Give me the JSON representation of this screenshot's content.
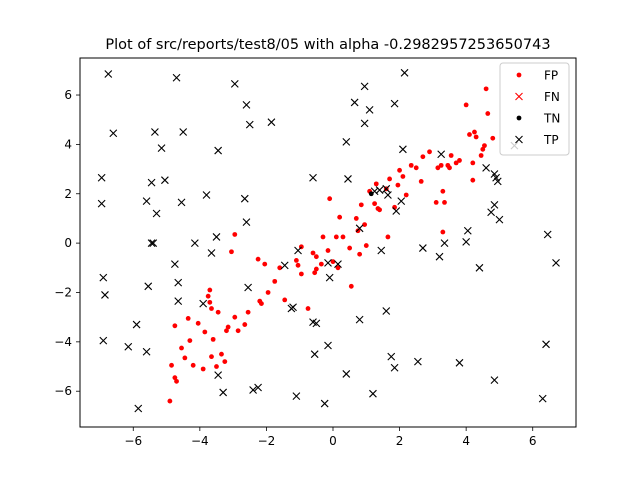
{
  "chart_data": {
    "type": "scatter",
    "title": "Plot of src/reports/test8/05 with alpha -0.2982957253650743",
    "xlabel": "",
    "ylabel": "",
    "xlim": [
      -7.6,
      7.3
    ],
    "ylim": [
      -7.45,
      7.5
    ],
    "xticks": [
      -6,
      -4,
      -2,
      0,
      2,
      4,
      6
    ],
    "yticks": [
      -6,
      -4,
      -2,
      0,
      2,
      4,
      6
    ],
    "grid": false,
    "legend_position": "top-right",
    "series": [
      {
        "name": "FP",
        "marker": "dot",
        "color": "#ff0000",
        "points": [
          [
            -4.9,
            -6.4
          ],
          [
            -4.85,
            -4.95
          ],
          [
            -4.75,
            -5.45
          ],
          [
            -4.7,
            -5.6
          ],
          [
            -4.75,
            -3.35
          ],
          [
            -4.55,
            -4.25
          ],
          [
            -4.45,
            -4.65
          ],
          [
            -4.35,
            -3.05
          ],
          [
            -4.3,
            -3.95
          ],
          [
            -4.2,
            -4.95
          ],
          [
            -4.05,
            -3.25
          ],
          [
            -3.9,
            -5.1
          ],
          [
            -3.85,
            -3.6
          ],
          [
            -3.75,
            -2.15
          ],
          [
            -3.7,
            -2.4
          ],
          [
            -3.7,
            -1.9
          ],
          [
            -3.65,
            -2.65
          ],
          [
            -3.65,
            -4.6
          ],
          [
            -3.6,
            -3.9
          ],
          [
            -3.5,
            -5.0
          ],
          [
            -3.45,
            -2.8
          ],
          [
            -3.35,
            -4.5
          ],
          [
            -3.25,
            -4.8
          ],
          [
            -3.2,
            -3.55
          ],
          [
            -3.15,
            -3.4
          ],
          [
            -3.05,
            -0.35
          ],
          [
            -2.95,
            0.35
          ],
          [
            -2.95,
            -3.0
          ],
          [
            -2.85,
            -3.55
          ],
          [
            -2.65,
            -3.3
          ],
          [
            -2.55,
            -2.8
          ],
          [
            -2.25,
            -0.65
          ],
          [
            -2.2,
            -2.35
          ],
          [
            -2.15,
            -2.45
          ],
          [
            -2.05,
            -0.85
          ],
          [
            -1.95,
            -2.0
          ],
          [
            -1.75,
            -1.55
          ],
          [
            -1.6,
            -1.0
          ],
          [
            -1.45,
            -2.3
          ],
          [
            -1.1,
            -0.7
          ],
          [
            -1.05,
            -0.9
          ],
          [
            -0.95,
            -1.25
          ],
          [
            -0.95,
            -0.15
          ],
          [
            -0.75,
            -2.65
          ],
          [
            -0.6,
            -0.4
          ],
          [
            -0.55,
            -1.2
          ],
          [
            -0.5,
            -1.05
          ],
          [
            -0.5,
            -0.55
          ],
          [
            -0.35,
            -0.85
          ],
          [
            -0.3,
            0.25
          ],
          [
            -0.15,
            -0.3
          ],
          [
            -0.1,
            1.8
          ],
          [
            0.0,
            -0.75
          ],
          [
            0.1,
            0.25
          ],
          [
            0.15,
            -1.0
          ],
          [
            0.2,
            1.05
          ],
          [
            0.3,
            0.25
          ],
          [
            0.5,
            -0.2
          ],
          [
            0.55,
            -1.75
          ],
          [
            0.7,
            1.0
          ],
          [
            0.75,
            0.5
          ],
          [
            0.8,
            -0.45
          ],
          [
            0.85,
            1.55
          ],
          [
            0.95,
            0.75
          ],
          [
            1.0,
            -0.1
          ],
          [
            1.1,
            2.1
          ],
          [
            1.25,
            1.6
          ],
          [
            1.3,
            2.4
          ],
          [
            1.35,
            1.4
          ],
          [
            1.4,
            1.35
          ],
          [
            1.6,
            2.2
          ],
          [
            1.65,
            0.25
          ],
          [
            1.7,
            2.6
          ],
          [
            1.85,
            1.45
          ],
          [
            1.95,
            2.35
          ],
          [
            2.0,
            2.95
          ],
          [
            2.1,
            2.7
          ],
          [
            2.2,
            1.95
          ],
          [
            2.35,
            3.15
          ],
          [
            2.5,
            3.05
          ],
          [
            2.65,
            2.5
          ],
          [
            2.7,
            3.5
          ],
          [
            2.9,
            3.7
          ],
          [
            3.1,
            1.65
          ],
          [
            3.15,
            3.05
          ],
          [
            3.25,
            3.15
          ],
          [
            3.3,
            2.1
          ],
          [
            3.3,
            0.45
          ],
          [
            3.35,
            1.65
          ],
          [
            3.45,
            3.15
          ],
          [
            3.5,
            3.05
          ],
          [
            3.55,
            3.55
          ],
          [
            3.7,
            3.25
          ],
          [
            3.8,
            3.35
          ],
          [
            4.0,
            5.6
          ],
          [
            4.1,
            4.4
          ],
          [
            4.2,
            3.25
          ],
          [
            4.2,
            2.55
          ],
          [
            4.25,
            4.5
          ],
          [
            4.3,
            4.3
          ],
          [
            4.45,
            3.55
          ],
          [
            4.5,
            3.8
          ],
          [
            4.55,
            3.95
          ],
          [
            4.6,
            6.25
          ],
          [
            4.65,
            5.25
          ],
          [
            4.8,
            4.25
          ]
        ]
      },
      {
        "name": "FN",
        "marker": "x",
        "color": "#ff0000",
        "points": []
      },
      {
        "name": "TN",
        "marker": "dot",
        "color": "#000000",
        "points": [
          [
            1.15,
            2.0
          ]
        ]
      },
      {
        "name": "TP",
        "marker": "x",
        "color": "#000000",
        "points": [
          [
            -6.95,
            2.65
          ],
          [
            -6.95,
            1.6
          ],
          [
            -6.9,
            -1.4
          ],
          [
            -6.85,
            -2.1
          ],
          [
            -6.9,
            -3.95
          ],
          [
            -6.75,
            6.85
          ],
          [
            -6.6,
            4.45
          ],
          [
            -6.15,
            -4.2
          ],
          [
            -5.9,
            -3.3
          ],
          [
            -5.85,
            -6.7
          ],
          [
            -5.6,
            -4.4
          ],
          [
            -5.6,
            1.7
          ],
          [
            -5.55,
            -1.75
          ],
          [
            -5.45,
            2.45
          ],
          [
            -5.45,
            0.0
          ],
          [
            -5.4,
            0.0
          ],
          [
            -5.35,
            4.5
          ],
          [
            -5.3,
            1.2
          ],
          [
            -5.15,
            3.85
          ],
          [
            -5.05,
            2.55
          ],
          [
            -4.75,
            -0.85
          ],
          [
            -4.7,
            6.7
          ],
          [
            -4.65,
            -1.6
          ],
          [
            -4.65,
            -2.35
          ],
          [
            -4.55,
            1.65
          ],
          [
            -4.5,
            4.5
          ],
          [
            -4.15,
            0.0
          ],
          [
            -3.9,
            -2.45
          ],
          [
            -3.8,
            1.95
          ],
          [
            -3.65,
            -0.4
          ],
          [
            -3.5,
            0.25
          ],
          [
            -3.45,
            3.75
          ],
          [
            -3.45,
            -5.35
          ],
          [
            -3.3,
            -6.05
          ],
          [
            -2.95,
            6.45
          ],
          [
            -2.65,
            1.8
          ],
          [
            -2.6,
            5.6
          ],
          [
            -2.6,
            0.85
          ],
          [
            -2.55,
            -1.8
          ],
          [
            -2.5,
            4.8
          ],
          [
            -2.4,
            -5.95
          ],
          [
            -2.25,
            -5.85
          ],
          [
            -1.85,
            4.9
          ],
          [
            -1.45,
            -0.9
          ],
          [
            -1.2,
            -2.6
          ],
          [
            -1.25,
            -2.65
          ],
          [
            -1.1,
            -6.2
          ],
          [
            -1.05,
            -0.3
          ],
          [
            -0.6,
            2.65
          ],
          [
            -0.6,
            -3.2
          ],
          [
            -0.5,
            -3.25
          ],
          [
            -0.55,
            -4.5
          ],
          [
            -0.25,
            -6.5
          ],
          [
            -0.15,
            -4.15
          ],
          [
            -0.15,
            -0.8
          ],
          [
            -0.1,
            -1.4
          ],
          [
            0.15,
            -0.85
          ],
          [
            0.4,
            4.1
          ],
          [
            0.4,
            -5.3
          ],
          [
            0.45,
            2.6
          ],
          [
            0.65,
            5.7
          ],
          [
            0.8,
            -3.1
          ],
          [
            0.8,
            0.6
          ],
          [
            0.95,
            4.85
          ],
          [
            0.95,
            6.35
          ],
          [
            1.1,
            5.4
          ],
          [
            1.2,
            -6.1
          ],
          [
            1.25,
            2.1
          ],
          [
            1.4,
            2.15
          ],
          [
            1.45,
            -0.3
          ],
          [
            1.6,
            -2.75
          ],
          [
            1.6,
            2.2
          ],
          [
            1.65,
            1.95
          ],
          [
            1.75,
            -4.6
          ],
          [
            1.85,
            -5.05
          ],
          [
            1.85,
            5.65
          ],
          [
            1.9,
            1.3
          ],
          [
            2.05,
            1.7
          ],
          [
            2.1,
            3.8
          ],
          [
            2.15,
            6.9
          ],
          [
            2.7,
            -0.2
          ],
          [
            2.55,
            -4.8
          ],
          [
            3.2,
            -0.55
          ],
          [
            3.25,
            3.6
          ],
          [
            3.35,
            0.0
          ],
          [
            3.8,
            -4.85
          ],
          [
            4.0,
            0.05
          ],
          [
            4.05,
            0.5
          ],
          [
            4.4,
            -1.0
          ],
          [
            4.6,
            3.05
          ],
          [
            4.75,
            1.25
          ],
          [
            4.85,
            1.55
          ],
          [
            4.85,
            2.8
          ],
          [
            4.85,
            -5.55
          ],
          [
            4.9,
            2.65
          ],
          [
            4.95,
            2.5
          ],
          [
            5.0,
            0.95
          ],
          [
            5.45,
            3.95
          ],
          [
            6.3,
            -6.3
          ],
          [
            6.4,
            -4.1
          ],
          [
            6.45,
            0.35
          ],
          [
            6.7,
            -0.8
          ]
        ]
      }
    ]
  }
}
